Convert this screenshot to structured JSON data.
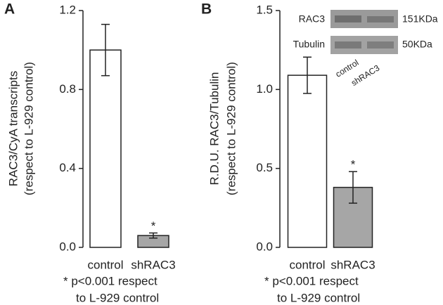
{
  "chart_data": [
    {
      "type": "bar",
      "panel": "A",
      "ylabel": [
        "RAC3/CyA transcripts",
        "(respect to L-929 control)"
      ],
      "categories": [
        "control",
        "shRAC3"
      ],
      "values": [
        1.0,
        0.06
      ],
      "errors": [
        0.13,
        0.013
      ],
      "colors": [
        "#ffffff",
        "#a6a6a6"
      ],
      "ylim": [
        0,
        1.2
      ],
      "yticks": [
        {
          "value": 0,
          "label": "0.0"
        },
        0.4,
        0.8,
        1.2
      ],
      "annotations": [
        null,
        "*"
      ],
      "footnote": [
        "* p<0.001 respect",
        "to L-929 control"
      ]
    },
    {
      "type": "bar",
      "panel": "B",
      "ylabel": [
        "R.D.U. RAC3/Tubulin",
        "(respect to L-929 control)"
      ],
      "categories": [
        "control",
        "shRAC3"
      ],
      "values": [
        1.09,
        0.38
      ],
      "errors": [
        0.115,
        0.1
      ],
      "colors": [
        "#ffffff",
        "#a6a6a6"
      ],
      "ylim": [
        0,
        1.5
      ],
      "yticks": [
        {
          "value": 0,
          "label": "0.0"
        },
        0.5,
        {
          "value": 1,
          "label": "1.0"
        },
        1.5
      ],
      "annotations": [
        null,
        "*"
      ],
      "footnote": [
        "* p<0.001 respect",
        "to L-929 control"
      ],
      "inset": {
        "rows": [
          "RAC3",
          "Tubulin"
        ],
        "sizes": [
          "151KDa",
          "50KDa"
        ],
        "lanes": [
          "control",
          "shRAC3"
        ]
      }
    }
  ]
}
